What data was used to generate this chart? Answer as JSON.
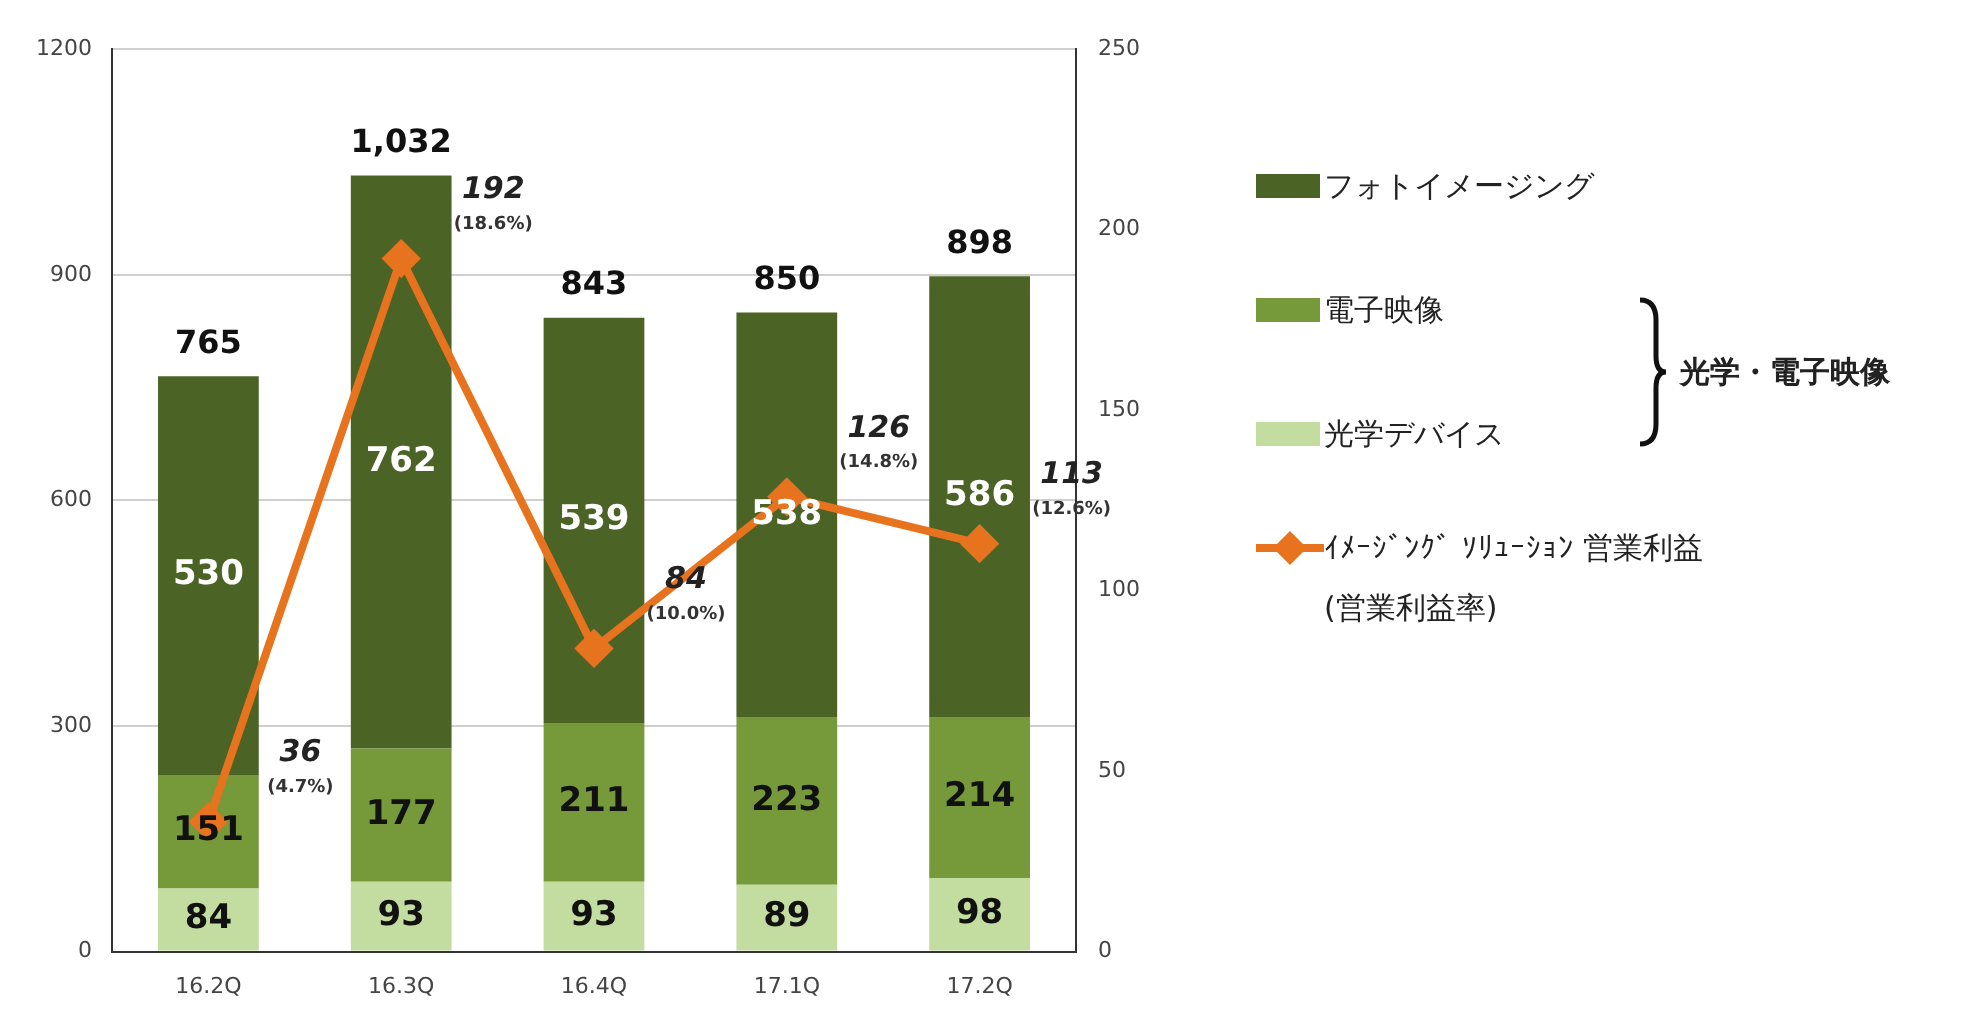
{
  "chart_data": {
    "type": "bar",
    "stacked": true,
    "categories": [
      "16.2Q",
      "16.3Q",
      "16.4Q",
      "17.1Q",
      "17.2Q"
    ],
    "series": [
      {
        "name": "光学デバイス",
        "color": "#c3dca0",
        "values": [
          84,
          93,
          93,
          89,
          98
        ]
      },
      {
        "name": "電子映像",
        "color": "#76993a",
        "values": [
          151,
          177,
          211,
          223,
          214
        ]
      },
      {
        "name": "フォトイメージング",
        "color": "#4b6426",
        "values": [
          530,
          762,
          539,
          538,
          586
        ]
      },
      {
        "name": "ｲﾒｰｼﾞﾝｸﾞ ｿﾘｭｰｼｮﾝ 営業利益 (営業利益率)",
        "type": "line",
        "axis": "y2",
        "color": "#e8731e",
        "values": [
          36,
          192,
          84,
          126,
          113
        ],
        "value_labels": [
          "36\n(4.7%)",
          "192\n(18.6%)",
          "84\n(10.0%)",
          "126\n(14.8%)",
          "113\n(12.6%)"
        ]
      }
    ],
    "totals": [
      "765",
      "1,032",
      "843",
      "850",
      "898"
    ],
    "data_labels": true,
    "ylim": [
      0,
      1200
    ],
    "yticks": [
      0,
      300,
      600,
      900,
      1200
    ],
    "y2lim": [
      0,
      250
    ],
    "y2ticks": [
      0,
      50,
      100,
      150,
      200,
      250
    ],
    "grid": "y",
    "legend": "right",
    "marker": "diamond",
    "annotations": [
      "光学・電子映像"
    ]
  }
}
